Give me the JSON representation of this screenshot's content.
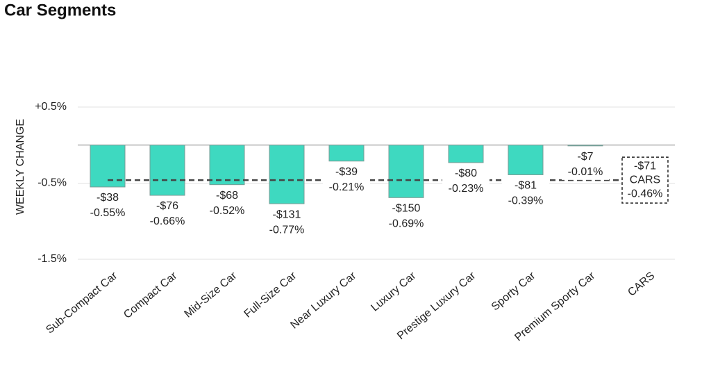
{
  "chart_data": {
    "type": "bar",
    "title": "Car Segments",
    "y_label": "WEEKLY CHANGE",
    "categories": [
      "Sub-Compact Car",
      "Compact Car",
      "Mid-Size Car",
      "Full-Size Car",
      "Near Luxury Car",
      "Luxury Car",
      "Prestige Luxury Car",
      "Sporty Car",
      "Premium Sporty Car"
    ],
    "values": [
      -0.55,
      -0.66,
      -0.52,
      -0.77,
      -0.21,
      -0.69,
      -0.23,
      -0.39,
      -0.01
    ],
    "value_labels": [
      "-0.55%",
      "-0.66%",
      "-0.52%",
      "-0.77%",
      "-0.21%",
      "-0.69%",
      "-0.23%",
      "-0.39%",
      "-0.01%"
    ],
    "dollar_labels": [
      "-$38",
      "-$76",
      "-$68",
      "-$131",
      "-$39",
      "-$150",
      "-$80",
      "-$81",
      "-$7"
    ],
    "color": "#3ed9c0",
    "reference": {
      "name": "CARS",
      "value": -0.46,
      "value_label": "-0.46%",
      "dollar_label": "-$71"
    },
    "ylim": [
      -1.5,
      0.5
    ],
    "yticks": [
      {
        "value": 0.5,
        "label": "+0.5%"
      },
      {
        "value": -0.5,
        "label": "-0.5%"
      },
      {
        "value": -1.5,
        "label": "-1.5%"
      }
    ],
    "grid": true
  }
}
